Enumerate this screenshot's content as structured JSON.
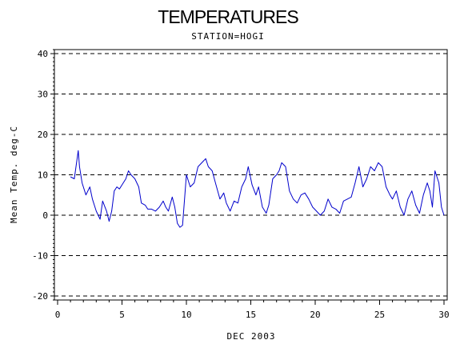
{
  "chart_data": {
    "type": "line",
    "title": "TEMPERATURES",
    "subtitle": "STATION=HOGI",
    "xlabel": "DEC 2003",
    "ylabel": "Mean Temp. deg-C",
    "xlim": [
      0,
      30
    ],
    "ylim": [
      -21,
      41
    ],
    "xticks": [
      0,
      5,
      10,
      15,
      20,
      25,
      30
    ],
    "yticks": [
      -20,
      -10,
      0,
      10,
      20,
      30,
      40
    ],
    "grid": "horizontal dashed",
    "series": [
      {
        "color": "#0000cc",
        "x": [
          1.0,
          1.3,
          1.6,
          1.7,
          1.9,
          2.2,
          2.5,
          2.7,
          3.0,
          3.3,
          3.5,
          3.8,
          4.0,
          4.2,
          4.4,
          4.6,
          4.8,
          5.0,
          5.3,
          5.5,
          5.7,
          6.0,
          6.3,
          6.5,
          6.8,
          7.0,
          7.3,
          7.6,
          7.9,
          8.2,
          8.4,
          8.6,
          8.9,
          9.1,
          9.3,
          9.5,
          9.7,
          10.0,
          10.3,
          10.6,
          10.9,
          11.2,
          11.5,
          11.7,
          12.0,
          12.3,
          12.6,
          12.9,
          13.1,
          13.4,
          13.7,
          14.0,
          14.3,
          14.6,
          14.8,
          15.1,
          15.4,
          15.6,
          15.9,
          16.2,
          16.4,
          16.7,
          17.0,
          17.2,
          17.4,
          17.7,
          18.0,
          18.3,
          18.6,
          18.9,
          19.2,
          19.5,
          19.8,
          20.1,
          20.4,
          20.7,
          21.0,
          21.3,
          21.6,
          21.9,
          22.2,
          22.5,
          22.8,
          23.1,
          23.4,
          23.7,
          24.0,
          24.3,
          24.6,
          24.9,
          25.2,
          25.5,
          25.8,
          26.0,
          26.3,
          26.6,
          26.9,
          27.2,
          27.5,
          27.8,
          28.1,
          28.4,
          28.7,
          28.9,
          29.1,
          29.3,
          29.6,
          29.8,
          30.0
        ],
        "y": [
          9.5,
          9.0,
          16.0,
          12.0,
          8.0,
          5.0,
          7.0,
          4.0,
          1.0,
          -1.0,
          3.5,
          1.0,
          -1.5,
          1.0,
          6.0,
          7.0,
          6.5,
          7.5,
          9.0,
          11.0,
          10.0,
          9.0,
          7.0,
          3.0,
          2.5,
          1.5,
          1.5,
          1.0,
          2.0,
          3.5,
          2.0,
          1.0,
          4.5,
          2.0,
          -2.0,
          -3.0,
          -2.5,
          10.0,
          7.0,
          8.0,
          12.0,
          13.0,
          14.0,
          12.0,
          11.0,
          7.5,
          4.0,
          5.5,
          3.0,
          1.0,
          3.5,
          3.0,
          7.0,
          9.0,
          12.0,
          7.5,
          5.0,
          7.0,
          2.0,
          0.5,
          2.5,
          9.0,
          10.0,
          11.0,
          13.0,
          12.0,
          6.0,
          4.0,
          3.0,
          5.0,
          5.5,
          4.0,
          2.0,
          1.0,
          0.0,
          1.0,
          4.0,
          2.0,
          1.5,
          0.5,
          3.5,
          4.0,
          4.5,
          8.0,
          12.0,
          7.0,
          9.0,
          12.0,
          11.0,
          13.0,
          12.0,
          7.0,
          5.0,
          4.0,
          6.0,
          2.0,
          0.0,
          4.0,
          6.0,
          2.5,
          0.5,
          5.0,
          8.0,
          6.0,
          2.0,
          11.0,
          8.0,
          2.0,
          0.0
        ]
      }
    ]
  }
}
